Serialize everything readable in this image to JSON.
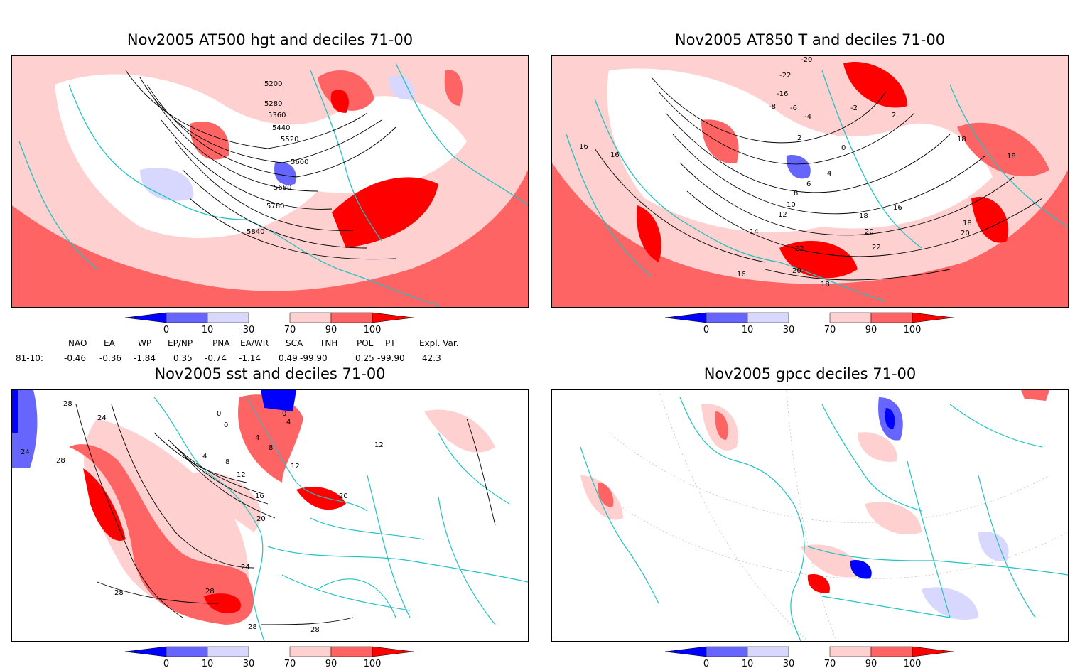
{
  "panels": [
    {
      "id": "tl",
      "title": "Nov2005 AT500 hgt and deciles 71-00",
      "contour_labels": [
        "5200",
        "5280",
        "5360",
        "5440",
        "5520",
        "5600",
        "5680",
        "5760",
        "5840"
      ]
    },
    {
      "id": "tr",
      "title": "Nov2005 AT850 T and deciles 71-00",
      "contour_labels": [
        "-20",
        "-22",
        "-16",
        "-8",
        "-6",
        "-4",
        "-2",
        "2",
        "0",
        "2",
        "4",
        "6",
        "8",
        "10",
        "12",
        "14",
        "16",
        "16",
        "18",
        "18",
        "16",
        "18",
        "20",
        "22",
        "22",
        "20",
        "20",
        "18",
        "16",
        "18"
      ]
    },
    {
      "id": "bl",
      "title": "Nov2005 sst and deciles 71-00",
      "contour_labels": [
        "28",
        "24",
        "24",
        "28",
        "0",
        "0",
        "0",
        "4",
        "4",
        "8",
        "4",
        "8",
        "12",
        "16",
        "12",
        "20",
        "20",
        "24",
        "28",
        "28",
        "28",
        "12",
        "28"
      ]
    },
    {
      "id": "br",
      "title": "Nov2005 gpcc deciles 71-00",
      "contour_labels": []
    }
  ],
  "colorbar": {
    "ticks": [
      "0",
      "10",
      "30",
      "70",
      "90",
      "100"
    ],
    "colors": [
      "#0000ff",
      "#6666ff",
      "#d8d8ff",
      "#ffffff",
      "#ffd0d0",
      "#ff6464",
      "#ff0000"
    ]
  },
  "indices": {
    "header": [
      "NAO",
      "EA",
      "WP",
      "EP/NP",
      "PNA",
      "EA/WR",
      "SCA",
      "TNH",
      "POL",
      "PT",
      "Expl. Var."
    ],
    "row_label": "81-10:",
    "values": [
      "-0.46",
      "-0.36",
      "-1.84",
      "0.35",
      "-0.74",
      "-1.14",
      "0.49",
      "-99.90",
      "0.25",
      "-99.90",
      "42.3"
    ]
  },
  "colors": {
    "coast": "#22c2c2",
    "light_red": "#ffd0d0",
    "mid_red": "#ff6464",
    "red": "#ff0000",
    "light_blue": "#d8d8ff",
    "mid_blue": "#6666ff",
    "blue": "#0000ff"
  }
}
